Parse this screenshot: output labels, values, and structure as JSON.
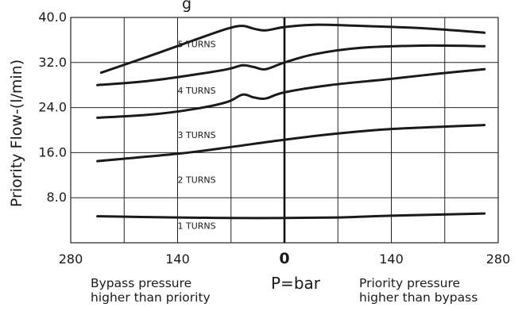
{
  "chart_data": {
    "type": "line",
    "title_fragment": "g",
    "ylabel": "Priority Flow-(l/min)",
    "xlabel": "P=bar",
    "ylim": [
      0,
      40
    ],
    "xlim": [
      -280,
      280
    ],
    "y_ticks": [
      "40.0",
      "32.0",
      "24.0",
      "16.0",
      "8.0"
    ],
    "y_tick_values": [
      40,
      32,
      24,
      16,
      8
    ],
    "x_ticks": [
      "280",
      "140",
      "0",
      "140",
      "280"
    ],
    "x_tick_values": [
      -280,
      -140,
      0,
      140,
      280
    ],
    "grid": true,
    "annotations": {
      "left": [
        "Bypass pressure",
        "higher than priority"
      ],
      "right": [
        "Priority pressure",
        "higher than bypass"
      ]
    },
    "series": [
      {
        "name": "5 TURNS",
        "x": [
          -240,
          -180,
          -120,
          -75,
          -55,
          -40,
          -25,
          0,
          40,
          100,
          180,
          262
        ],
        "y": [
          30.2,
          33.0,
          35.9,
          38.0,
          38.5,
          38.0,
          37.7,
          38.3,
          38.7,
          38.5,
          38.1,
          37.3
        ]
      },
      {
        "name": "4 TURNS",
        "x": [
          -245,
          -180,
          -120,
          -75,
          -55,
          -40,
          -25,
          0,
          40,
          100,
          180,
          262
        ],
        "y": [
          28.0,
          28.7,
          29.8,
          30.8,
          31.5,
          31.2,
          30.8,
          32.0,
          33.5,
          34.6,
          35.0,
          34.9
        ]
      },
      {
        "name": "3 TURNS",
        "x": [
          -245,
          -180,
          -120,
          -75,
          -55,
          -40,
          -25,
          0,
          60,
          140,
          200,
          262
        ],
        "y": [
          22.2,
          22.7,
          23.7,
          25.0,
          26.3,
          25.8,
          25.6,
          26.7,
          28.0,
          29.1,
          30.0,
          30.8
        ]
      },
      {
        "name": "2 TURNS",
        "x": [
          -245,
          -140,
          -70,
          0,
          70,
          140,
          262
        ],
        "y": [
          14.5,
          15.8,
          17.0,
          18.3,
          19.4,
          20.2,
          20.9
        ]
      },
      {
        "name": "1 TURNS",
        "x": [
          -245,
          -140,
          -70,
          0,
          70,
          140,
          262
        ],
        "y": [
          4.7,
          4.5,
          4.4,
          4.4,
          4.5,
          4.8,
          5.2
        ]
      }
    ],
    "curve_label_positions": [
      {
        "label": "5 TURNS",
        "x": -140,
        "y": 34.7
      },
      {
        "label": "4 TURNS",
        "x": -140,
        "y": 26.5
      },
      {
        "label": "3 TURNS",
        "x": -140,
        "y": 18.6
      },
      {
        "label": "2 TURNS",
        "x": -140,
        "y": 10.6
      },
      {
        "label": "1 TURNS",
        "x": -140,
        "y": 2.5
      }
    ]
  }
}
